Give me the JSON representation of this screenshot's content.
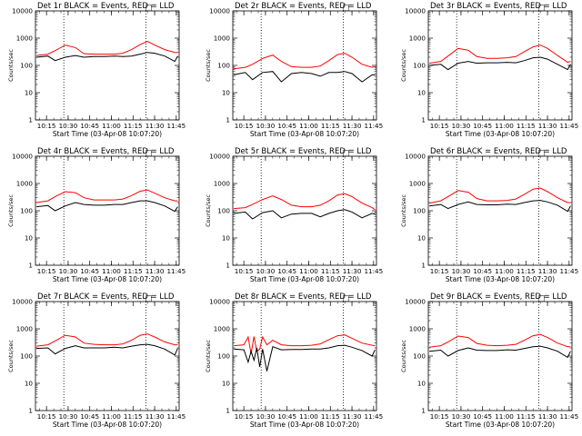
{
  "shared": {
    "colors": {
      "events": "#000000",
      "lld": "#ff0000",
      "background": "#ffffff",
      "axis": "#000000"
    },
    "xlabel": "Start Time (03-Apr-08 10:07:20)",
    "ylabel": "Counts/sec",
    "x_ticks": [
      "10:15",
      "10:30",
      "10:45",
      "11:00",
      "11:15",
      "11:30",
      "11:45"
    ],
    "y_ticks": [
      "1",
      "10",
      "100",
      "1000",
      "10000"
    ],
    "xlim": [
      "10:07:20",
      "11:47:00"
    ],
    "ylim": [
      1,
      10000
    ],
    "y_scale": "log",
    "vlines": [
      "10:27",
      "11:24"
    ],
    "vline_style": "dotted",
    "corner_marker": "□"
  },
  "chart_data": [
    {
      "type": "line",
      "title": "Det 1r BLACK = Events, RED = LLD",
      "x": [
        "10:08",
        "10:16",
        "10:21",
        "10:28",
        "10:35",
        "10:41",
        "10:48",
        "10:55",
        "11:02",
        "11:08",
        "11:14",
        "11:20",
        "11:25",
        "11:30",
        "11:37",
        "11:44",
        "11:46"
      ],
      "series": [
        {
          "name": "LLD",
          "color": "#ff0000",
          "values": [
            230,
            260,
            350,
            560,
            450,
            270,
            260,
            260,
            260,
            280,
            380,
            580,
            760,
            560,
            380,
            300,
            300
          ]
        },
        {
          "name": "Events",
          "color": "#000000",
          "values": [
            200,
            220,
            150,
            200,
            230,
            200,
            210,
            210,
            220,
            210,
            220,
            260,
            300,
            280,
            220,
            140,
            220
          ]
        }
      ]
    },
    {
      "type": "line",
      "title": "Det 2r BLACK = Events, RED = LLD",
      "x": [
        "10:08",
        "10:16",
        "10:21",
        "10:28",
        "10:35",
        "10:41",
        "10:48",
        "10:55",
        "11:02",
        "11:08",
        "11:14",
        "11:20",
        "11:25",
        "11:30",
        "11:37",
        "11:44",
        "11:46"
      ],
      "series": [
        {
          "name": "LLD",
          "color": "#ff0000",
          "values": [
            75,
            85,
            110,
            180,
            240,
            140,
            90,
            85,
            85,
            95,
            150,
            250,
            280,
            200,
            110,
            85,
            90
          ]
        },
        {
          "name": "Events",
          "color": "#000000",
          "values": [
            45,
            55,
            30,
            55,
            60,
            25,
            50,
            55,
            50,
            40,
            55,
            55,
            60,
            50,
            25,
            45,
            45
          ]
        }
      ]
    },
    {
      "type": "line",
      "title": "Det 3r BLACK = Events, RED = LLD",
      "x": [
        "10:08",
        "10:16",
        "10:21",
        "10:28",
        "10:35",
        "10:41",
        "10:48",
        "10:55",
        "11:02",
        "11:08",
        "11:14",
        "11:20",
        "11:25",
        "11:30",
        "11:37",
        "11:44",
        "11:46"
      ],
      "series": [
        {
          "name": "LLD",
          "color": "#ff0000",
          "values": [
            120,
            140,
            220,
            420,
            360,
            210,
            180,
            180,
            190,
            210,
            320,
            480,
            560,
            420,
            230,
            130,
            140
          ]
        },
        {
          "name": "Events",
          "color": "#000000",
          "values": [
            100,
            110,
            70,
            120,
            140,
            120,
            125,
            125,
            130,
            125,
            150,
            190,
            200,
            170,
            110,
            70,
            110
          ]
        }
      ]
    },
    {
      "type": "line",
      "title": "Det 4r BLACK = Events, RED = LLD",
      "x": [
        "10:08",
        "10:16",
        "10:21",
        "10:28",
        "10:35",
        "10:41",
        "10:48",
        "10:55",
        "11:02",
        "11:08",
        "11:14",
        "11:20",
        "11:25",
        "11:30",
        "11:37",
        "11:44",
        "11:46"
      ],
      "series": [
        {
          "name": "LLD",
          "color": "#ff0000",
          "values": [
            200,
            230,
            330,
            500,
            460,
            300,
            250,
            250,
            250,
            270,
            360,
            520,
            580,
            440,
            300,
            230,
            230
          ]
        },
        {
          "name": "Events",
          "color": "#000000",
          "values": [
            140,
            155,
            100,
            150,
            200,
            170,
            160,
            160,
            170,
            170,
            200,
            230,
            230,
            200,
            150,
            95,
            140
          ]
        }
      ]
    },
    {
      "type": "line",
      "title": "Det 5r BLACK = Events, RED = LLD",
      "x": [
        "10:08",
        "10:16",
        "10:21",
        "10:28",
        "10:35",
        "10:41",
        "10:48",
        "10:55",
        "11:02",
        "11:08",
        "11:14",
        "11:20",
        "11:25",
        "11:30",
        "11:37",
        "11:44",
        "11:46"
      ],
      "series": [
        {
          "name": "LLD",
          "color": "#ff0000",
          "values": [
            120,
            130,
            170,
            260,
            350,
            260,
            160,
            140,
            140,
            160,
            230,
            380,
            420,
            330,
            190,
            130,
            110
          ]
        },
        {
          "name": "Events",
          "color": "#000000",
          "values": [
            80,
            90,
            50,
            85,
            100,
            55,
            75,
            80,
            80,
            60,
            80,
            100,
            110,
            90,
            55,
            80,
            75
          ]
        }
      ]
    },
    {
      "type": "line",
      "title": "Det 6r BLACK = Events, RED = LLD",
      "x": [
        "10:08",
        "10:16",
        "10:21",
        "10:28",
        "10:35",
        "10:41",
        "10:48",
        "10:55",
        "11:02",
        "11:08",
        "11:14",
        "11:20",
        "11:25",
        "11:30",
        "11:37",
        "11:44",
        "11:46"
      ],
      "series": [
        {
          "name": "LLD",
          "color": "#ff0000",
          "values": [
            190,
            230,
            330,
            550,
            480,
            280,
            230,
            230,
            240,
            270,
            400,
            620,
            680,
            500,
            300,
            200,
            200
          ]
        },
        {
          "name": "Events",
          "color": "#000000",
          "values": [
            150,
            170,
            120,
            170,
            210,
            170,
            165,
            165,
            175,
            170,
            200,
            230,
            240,
            210,
            160,
            95,
            150
          ]
        }
      ]
    },
    {
      "type": "line",
      "title": "Det 7r BLACK = Events, RED = LLD",
      "x": [
        "10:08",
        "10:16",
        "10:21",
        "10:28",
        "10:35",
        "10:41",
        "10:48",
        "10:55",
        "11:02",
        "11:08",
        "11:14",
        "11:20",
        "11:25",
        "11:30",
        "11:37",
        "11:44",
        "11:46"
      ],
      "series": [
        {
          "name": "LLD",
          "color": "#ff0000",
          "values": [
            230,
            260,
            360,
            580,
            500,
            300,
            270,
            260,
            260,
            280,
            380,
            580,
            650,
            500,
            330,
            260,
            260
          ]
        },
        {
          "name": "Events",
          "color": "#000000",
          "values": [
            190,
            200,
            120,
            190,
            240,
            200,
            200,
            200,
            210,
            200,
            230,
            260,
            270,
            240,
            180,
            110,
            190
          ]
        }
      ]
    },
    {
      "type": "line",
      "title": "Det 8r BLACK = Events, RED = LLD",
      "x": [
        "10:08",
        "10:15",
        "10:18",
        "10:20",
        "10:22",
        "10:24",
        "10:26",
        "10:28",
        "10:31",
        "10:35",
        "10:41",
        "10:48",
        "10:55",
        "11:02",
        "11:08",
        "11:14",
        "11:20",
        "11:25",
        "11:30",
        "11:37",
        "11:44",
        "11:46"
      ],
      "series": [
        {
          "name": "LLD",
          "color": "#ff0000",
          "values": [
            240,
            260,
            500,
            120,
            520,
            150,
            180,
            500,
            260,
            380,
            260,
            240,
            240,
            250,
            280,
            400,
            560,
            600,
            450,
            300,
            250,
            240
          ]
        },
        {
          "name": "Events",
          "color": "#000000",
          "values": [
            180,
            170,
            60,
            150,
            70,
            200,
            40,
            180,
            28,
            220,
            170,
            175,
            175,
            180,
            180,
            200,
            240,
            250,
            210,
            160,
            100,
            170
          ]
        }
      ]
    },
    {
      "type": "line",
      "title": "Det 9r BLACK = Events, RED = LLD",
      "x": [
        "10:08",
        "10:16",
        "10:21",
        "10:28",
        "10:35",
        "10:41",
        "10:48",
        "10:55",
        "11:02",
        "11:08",
        "11:14",
        "11:20",
        "11:25",
        "11:30",
        "11:37",
        "11:44",
        "11:46"
      ],
      "series": [
        {
          "name": "LLD",
          "color": "#ff0000",
          "values": [
            210,
            240,
            330,
            540,
            480,
            290,
            250,
            240,
            250,
            270,
            380,
            560,
            620,
            480,
            300,
            220,
            220
          ]
        },
        {
          "name": "Events",
          "color": "#000000",
          "values": [
            150,
            165,
            100,
            160,
            200,
            165,
            160,
            160,
            170,
            165,
            190,
            220,
            230,
            200,
            150,
            90,
            150
          ]
        }
      ]
    }
  ]
}
